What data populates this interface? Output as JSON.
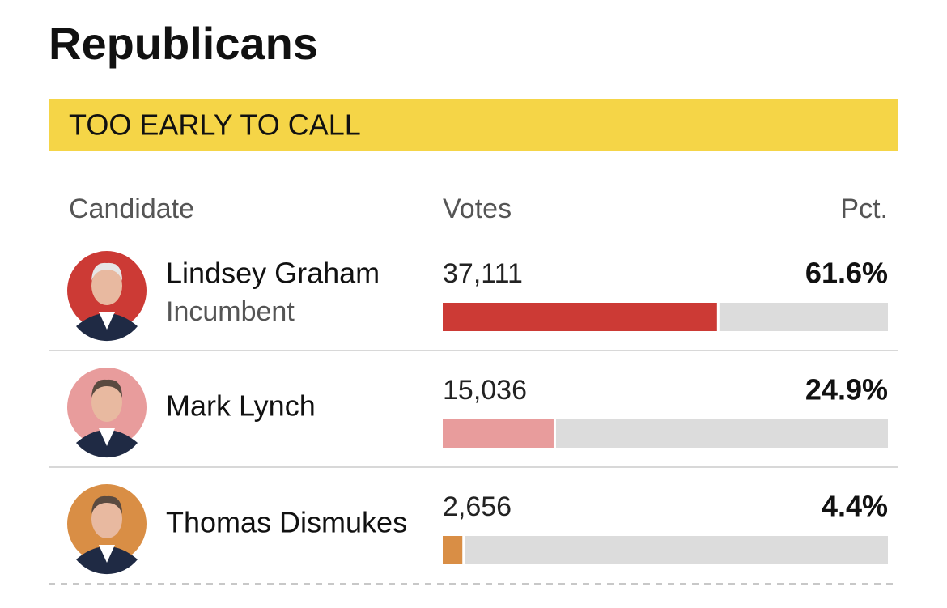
{
  "header": {
    "title": "Republicans",
    "status": "TOO EARLY TO CALL"
  },
  "columns": [
    "Candidate",
    "Votes",
    "Pct."
  ],
  "pct_range": [
    0,
    100
  ],
  "rows": [
    {
      "name": "Lindsey Graham",
      "note": "Incumbent",
      "votes": "37,111",
      "pct": 61.6,
      "pct_label": "61.6%",
      "color": "#cc3a35"
    },
    {
      "name": "Mark Lynch",
      "votes": "15,036",
      "pct": 24.9,
      "pct_label": "24.9%",
      "color": "#e89c9c"
    },
    {
      "name": "Thomas Dismukes",
      "votes": "2,656",
      "pct": 4.4,
      "pct_label": "4.4%",
      "color": "#d98e45"
    }
  ]
}
